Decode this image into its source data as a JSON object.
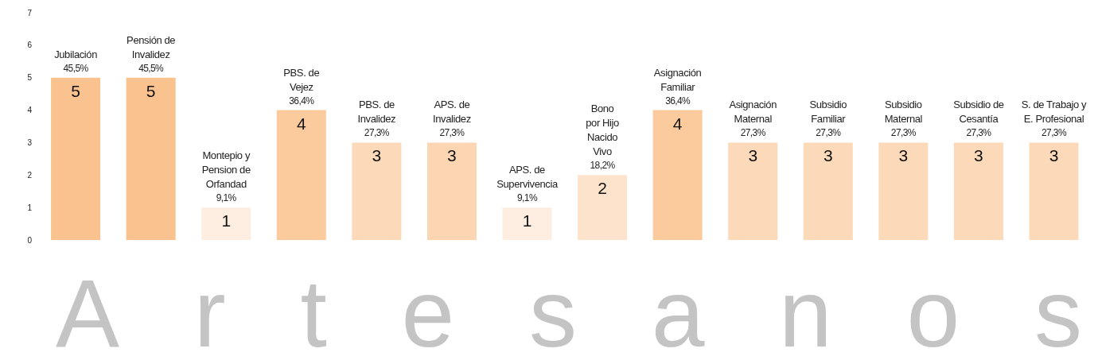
{
  "chart_data": {
    "type": "bar",
    "title": "Artesanos",
    "categories": [
      "Jubilación",
      "Pensión de\nInvalidez",
      "Montepio y\nPension de\nOrfandad",
      "PBS. de\nVejez",
      "PBS. de\nInvalidez",
      "APS. de\nInvalidez",
      "APS. de\nSupervivencia",
      "Bono\npor Hijo\nNacido\nVivo",
      "Asignación\nFamiliar",
      "Asignación\nMaternal",
      "Subsidio\nFamiliar",
      "Subsidio\nMaternal",
      "Subsidio de\nCesantía",
      "S. de  Trabajo y\nE. Profesional"
    ],
    "values": [
      5,
      5,
      1,
      4,
      3,
      3,
      1,
      2,
      4,
      3,
      3,
      3,
      3,
      3
    ],
    "colors": [
      "#f9c28e",
      "#f9c28e",
      "#fdeee1",
      "#fbcb9e",
      "#fcd9b9",
      "#fcd6b3",
      "#fdeee1",
      "#fde3cb",
      "#fbcb9e",
      "#fcd9b9",
      "#fcd9b9",
      "#fcd9b9",
      "#fcd9b9",
      "#fcd9b9"
    ],
    "ylim": [
      0,
      7
    ],
    "yticks": [
      0,
      1,
      2,
      3,
      4,
      5,
      6,
      7
    ],
    "grid": false,
    "data_labels": true,
    "annotations": [
      {
        "text": "45,5%",
        "x": "Jubilación",
        "y": 5
      },
      {
        "text": "45,5%",
        "x": "Pensión de\nInvalidez",
        "y": 5
      },
      {
        "text": "9,1%",
        "x": "Montepio y\nPension de\nOrfandad",
        "y": 1
      },
      {
        "text": "36,4%",
        "x": "PBS. de\nVejez",
        "y": 4
      },
      {
        "text": "27,3%",
        "x": "PBS. de\nInvalidez",
        "y": 3
      },
      {
        "text": "27,3%",
        "x": "APS. de\nInvalidez",
        "y": 3
      },
      {
        "text": "9,1%",
        "x": "APS. de\nSupervivencia",
        "y": 1
      },
      {
        "text": "18,2%",
        "x": "Bono\npor Hijo\nNacido\nVivo",
        "y": 2
      },
      {
        "text": "36,4%",
        "x": "Asignación\nFamiliar",
        "y": 4
      },
      {
        "text": "27,3%",
        "x": "Asignación\nMaternal",
        "y": 3
      },
      {
        "text": "27,3%",
        "x": "Subsidio\nFamiliar",
        "y": 3
      },
      {
        "text": "27,3%",
        "x": "Subsidio\nMaternal",
        "y": 3
      },
      {
        "text": "27,3%",
        "x": "Subsidio de\nCesantía",
        "y": 3
      },
      {
        "text": "27,3%",
        "x": "S. de  Trabajo y\nE. Profesional",
        "y": 3
      }
    ]
  }
}
